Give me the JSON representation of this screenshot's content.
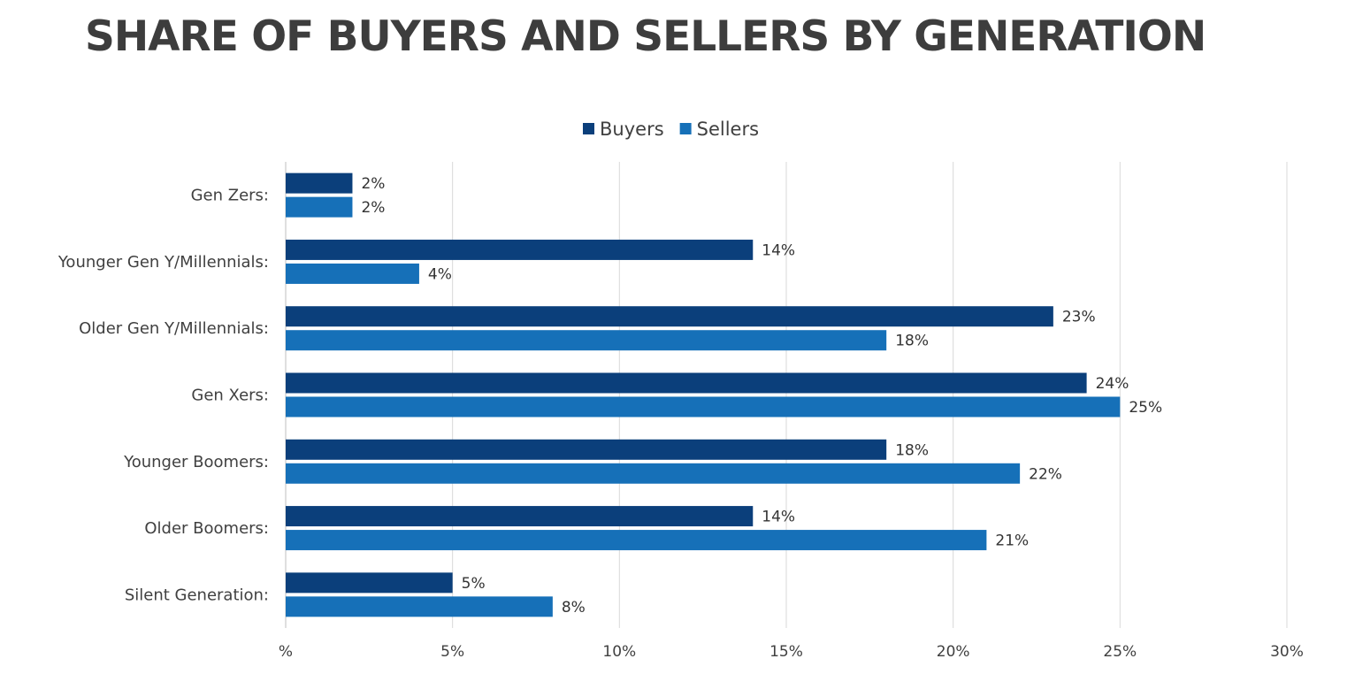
{
  "chart_data": {
    "type": "bar",
    "orientation": "horizontal",
    "title": "SHARE OF BUYERS AND SELLERS BY GENERATION",
    "categories": [
      "Gen Zers:",
      "Younger Gen Y/Millennials:",
      "Older Gen Y/Millennials:",
      "Gen Xers:",
      "Younger Boomers:",
      "Older Boomers:",
      "Silent Generation:"
    ],
    "series": [
      {
        "name": "Buyers",
        "color": "#0b3f7b",
        "values": [
          2,
          14,
          23,
          24,
          18,
          14,
          5
        ],
        "labels": [
          "2%",
          "14%",
          "23%",
          "24%",
          "18%",
          "14%",
          "5%"
        ]
      },
      {
        "name": "Sellers",
        "color": "#1670b8",
        "values": [
          2,
          4,
          18,
          25,
          22,
          21,
          8
        ],
        "labels": [
          "2%",
          "4%",
          "18%",
          "25%",
          "22%",
          "21%",
          "8%"
        ]
      }
    ],
    "xlim": [
      0,
      30
    ],
    "xticks": [
      0,
      5,
      10,
      15,
      20,
      25,
      30
    ],
    "xtick_labels": [
      "%",
      "5%",
      "10%",
      "15%",
      "20%",
      "25%",
      "30%"
    ],
    "grid": true,
    "legend_position": "top-center"
  }
}
